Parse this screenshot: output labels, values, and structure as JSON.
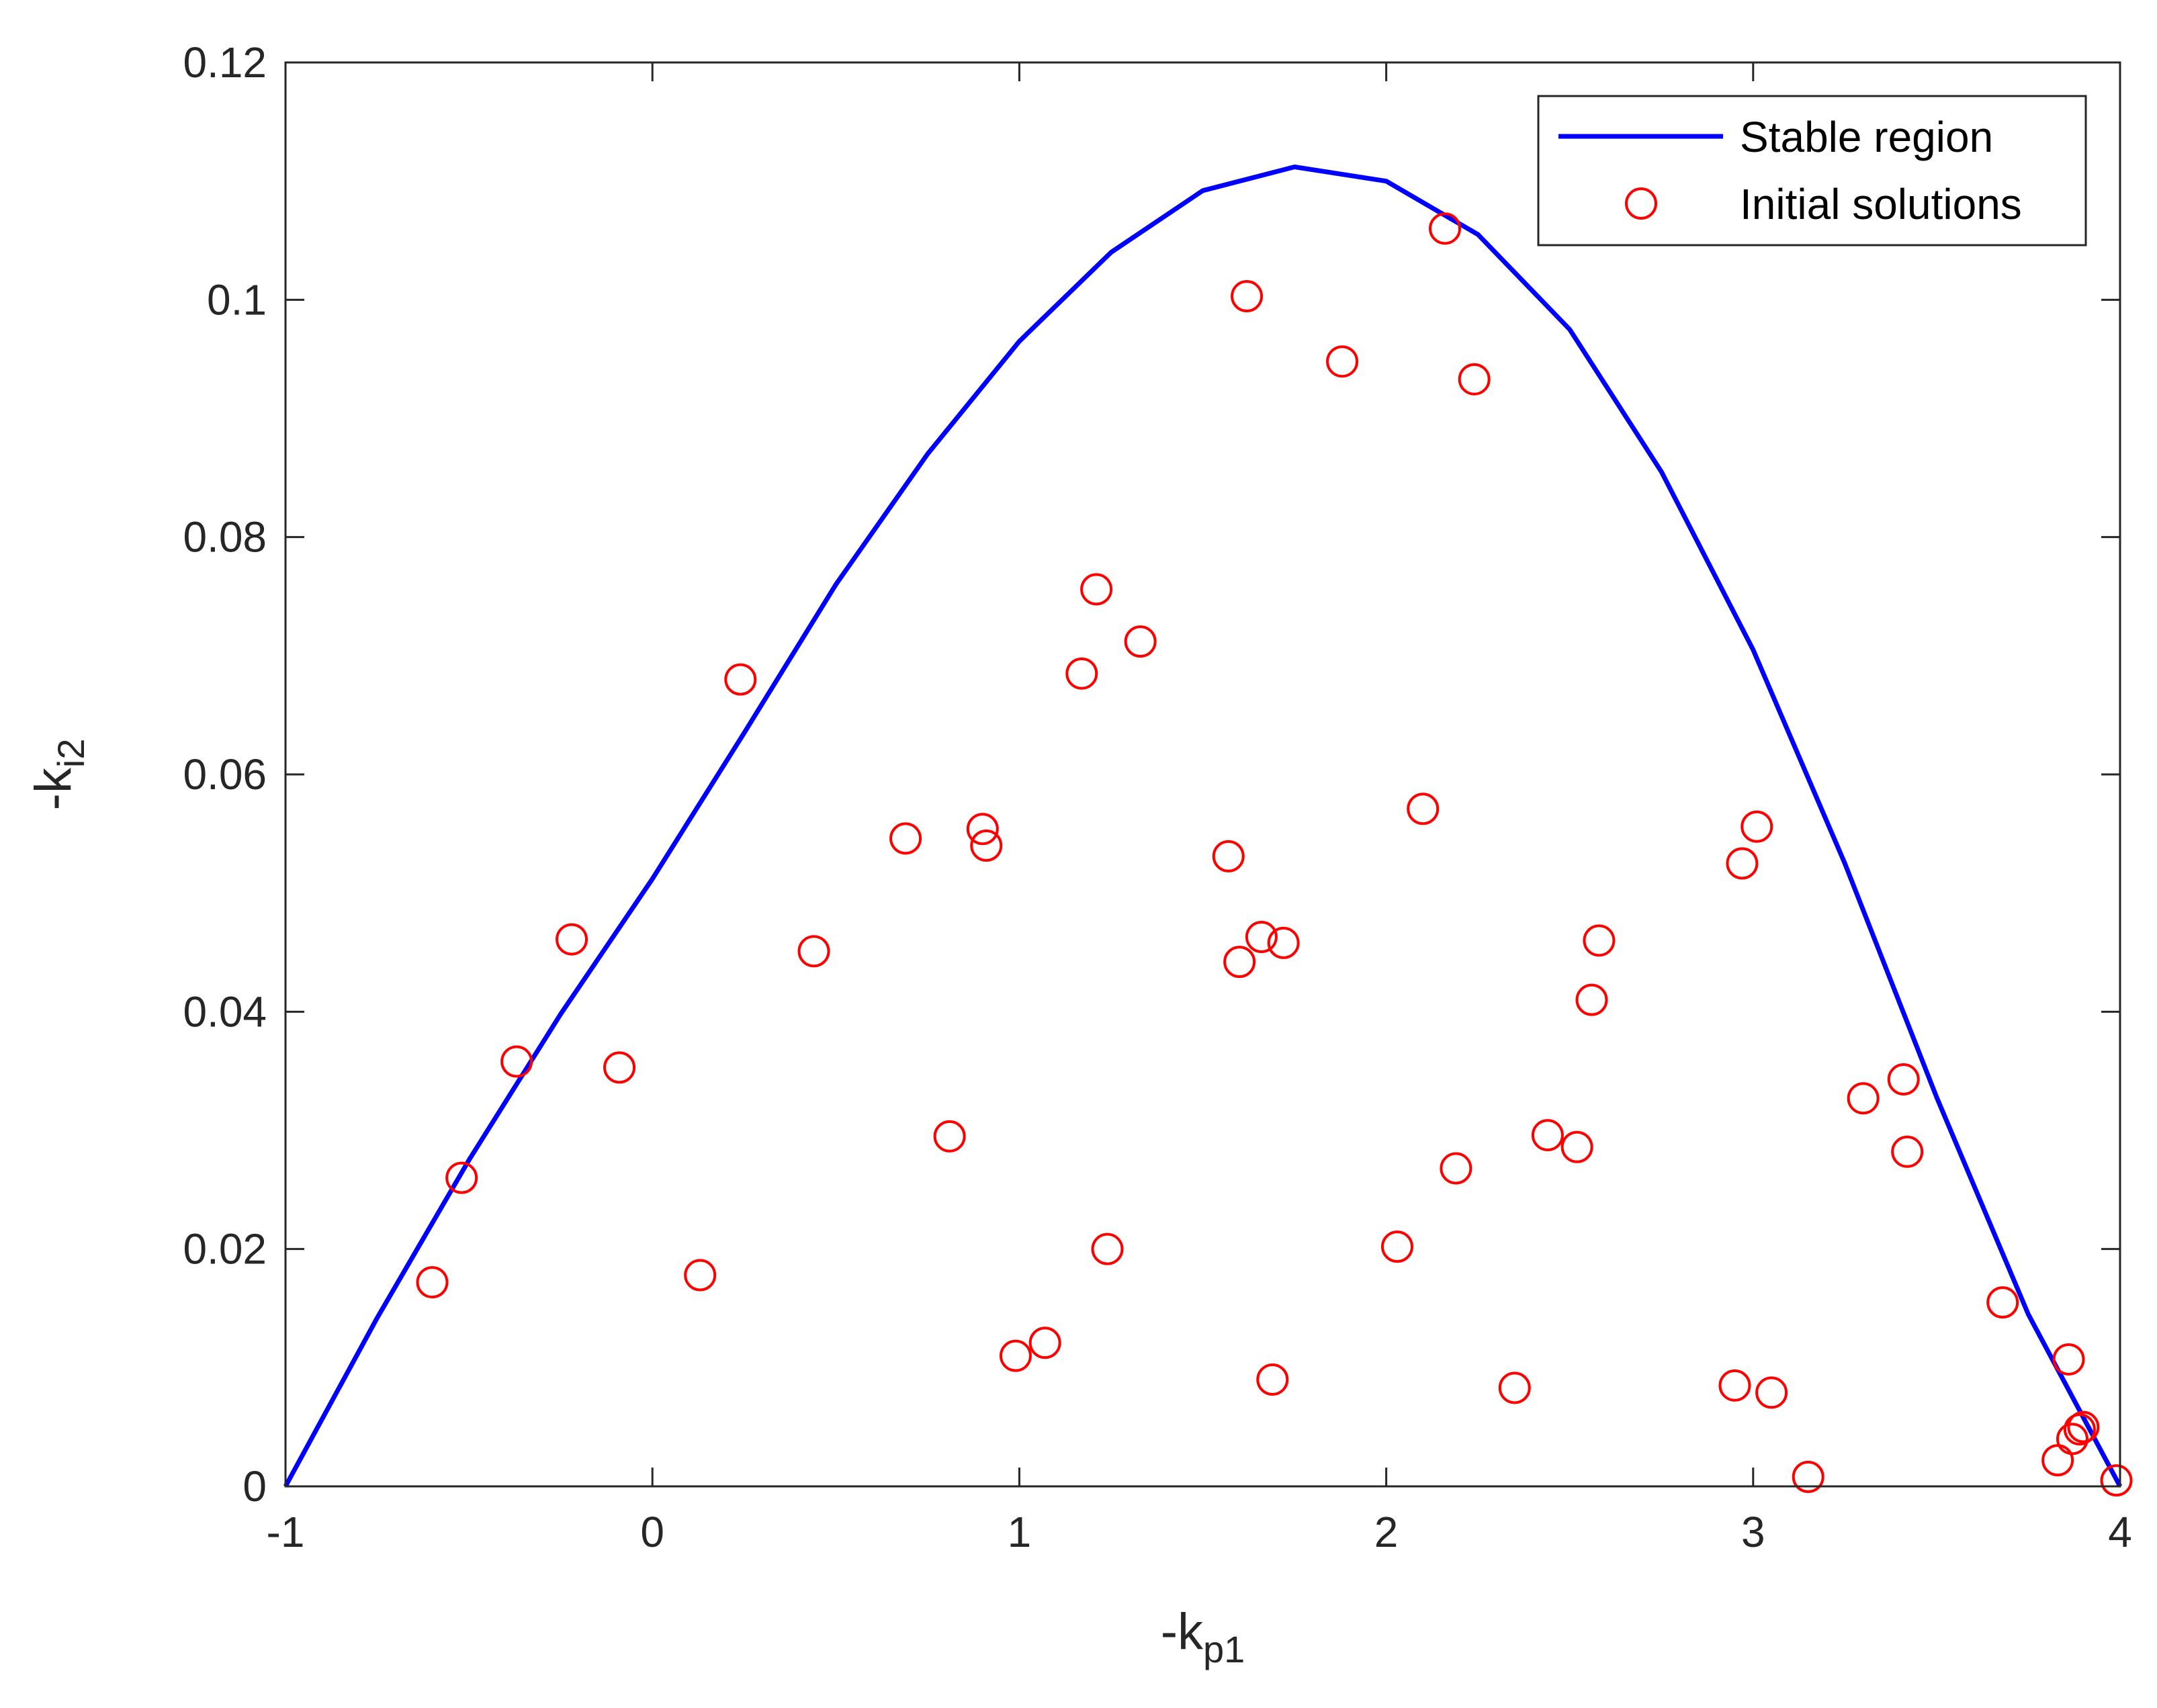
{
  "chart_data": {
    "type": "scatter",
    "title": "",
    "xlabel": {
      "main": "-k",
      "sub": "p1"
    },
    "ylabel": {
      "main": "-k",
      "sub": "i2"
    },
    "xlim": [
      -1,
      4
    ],
    "ylim": [
      0,
      0.12
    ],
    "xticks": [
      -1,
      0,
      1,
      2,
      3,
      4
    ],
    "yticks": [
      0,
      0.02,
      0.04,
      0.06,
      0.08,
      0.1,
      0.12
    ],
    "xtick_labels": [
      "-1",
      "0",
      "1",
      "2",
      "3",
      "4"
    ],
    "ytick_labels": [
      "0",
      "0.02",
      "0.04",
      "0.06",
      "0.08",
      "0.1",
      "0.12"
    ],
    "grid": false,
    "legend": "top-right",
    "series": [
      {
        "name": "Stable region",
        "kind": "line",
        "color": "#0000ff",
        "x": [
          -1,
          -0.75,
          -0.5,
          -0.25,
          0,
          0.25,
          0.5,
          0.75,
          1,
          1.25,
          1.5,
          1.75,
          2,
          2.25,
          2.5,
          2.75,
          3,
          3.25,
          3.5,
          3.75,
          4
        ],
        "y": [
          0,
          0.0142,
          0.0275,
          0.0398,
          0.0512,
          0.0635,
          0.076,
          0.087,
          0.0965,
          0.104,
          0.1092,
          0.1112,
          0.11,
          0.1055,
          0.0975,
          0.0855,
          0.0705,
          0.0525,
          0.0328,
          0.0145,
          0
        ]
      },
      {
        "name": "Initial solutions",
        "kind": "marker",
        "marker": "circle",
        "color": "#ff0000",
        "x": [
          -0.6,
          -0.52,
          -0.37,
          -0.22,
          -0.09,
          0.13,
          0.24,
          0.44,
          0.69,
          0.81,
          0.9,
          0.91,
          0.99,
          1.07,
          1.17,
          1.21,
          1.24,
          1.33,
          1.57,
          1.6,
          1.62,
          1.66,
          1.69,
          1.72,
          1.88,
          2.03,
          2.1,
          2.16,
          2.19,
          2.24,
          2.35,
          2.44,
          2.52,
          2.56,
          2.58,
          2.95,
          2.97,
          3.01,
          3.05,
          3.15,
          3.3,
          3.41,
          3.42,
          3.68,
          3.83,
          3.86,
          3.87,
          3.89,
          3.9,
          3.99
        ],
        "y": [
          0.0172,
          0.026,
          0.0358,
          0.0461,
          0.0353,
          0.0178,
          0.068,
          0.0451,
          0.0546,
          0.0295,
          0.0554,
          0.054,
          0.011,
          0.0121,
          0.0685,
          0.0756,
          0.02,
          0.0712,
          0.0531,
          0.0442,
          0.1003,
          0.0463,
          0.009,
          0.0458,
          0.0948,
          0.0202,
          0.0571,
          0.106,
          0.0268,
          0.0933,
          0.0083,
          0.0296,
          0.0286,
          0.041,
          0.046,
          0.0085,
          0.0525,
          0.0556,
          0.0079,
          0.0008,
          0.0327,
          0.0343,
          0.0282,
          0.0155,
          0.0022,
          0.0107,
          0.004,
          0.0048,
          0.005,
          0.0005
        ]
      }
    ]
  }
}
